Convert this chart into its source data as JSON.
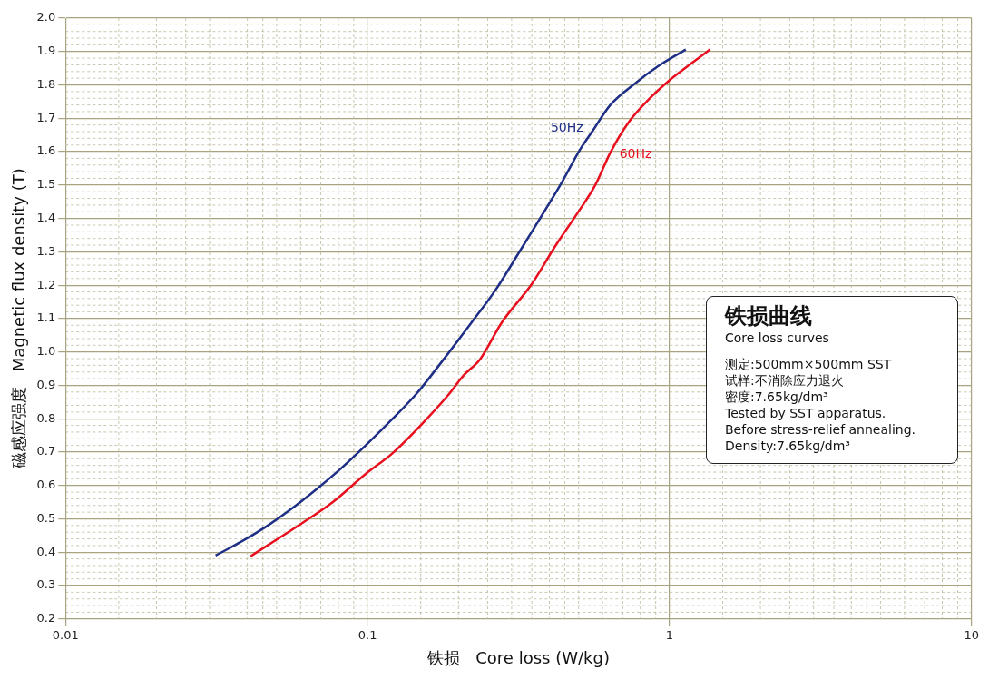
{
  "chart_data": {
    "type": "line",
    "title": "铁损曲线",
    "subtitle": "Core loss curves",
    "xlabel": "铁损   Core loss (W/kg)",
    "ylabel": "磁感应强度   Magnetic flux density (T)",
    "log": "x",
    "xlim": [
      0.01,
      10
    ],
    "xticks": [
      0.01,
      0.1,
      1,
      10
    ],
    "ylim": [
      0.2,
      2.0
    ],
    "yticks": [
      0.2,
      0.3,
      0.4,
      0.5,
      0.6,
      0.7,
      0.8,
      0.9,
      {
        "value": 1,
        "label": "1.0"
      },
      1.1,
      1.2,
      1.3,
      1.4,
      1.5,
      1.6,
      1.7,
      1.8,
      1.9,
      {
        "value": 2,
        "label": "2.0"
      }
    ],
    "grid": true,
    "legend": false,
    "marker": "none",
    "line_style": "solid",
    "series": [
      {
        "name": "50Hz",
        "color": "#1f2f86",
        "x": [
          0.0314,
          0.0391,
          0.0471,
          0.0579,
          0.0697,
          0.0819,
          0.1007,
          0.1211,
          0.1456,
          0.179,
          0.2204,
          0.2651,
          0.3189,
          0.3832,
          0.44,
          0.5052,
          0.5542,
          0.6368,
          0.7652,
          0.9204,
          1.132
        ],
        "values": [
          0.39,
          0.437,
          0.482,
          0.54,
          0.598,
          0.652,
          0.728,
          0.8,
          0.876,
          0.979,
          1.087,
          1.185,
          1.301,
          1.418,
          1.508,
          1.606,
          1.66,
          1.74,
          1.803,
          1.857,
          1.906
        ]
      },
      {
        "name": "60Hz",
        "color": "#e8101e",
        "x": [
          0.041,
          0.0607,
          0.0764,
          0.0984,
          0.1211,
          0.1525,
          0.1834,
          0.2082,
          0.2362,
          0.2777,
          0.3495,
          0.4204,
          0.5052,
          0.5672,
          0.6368,
          0.731,
          0.8395,
          1.009,
          1.187,
          1.362
        ],
        "values": [
          0.388,
          0.487,
          0.549,
          0.634,
          0.697,
          0.787,
          0.867,
          0.93,
          0.979,
          1.087,
          1.203,
          1.32,
          1.427,
          1.499,
          1.597,
          1.687,
          1.75,
          1.817,
          1.866,
          1.906
        ]
      }
    ],
    "annotations": [
      "测定:500mm×500mm SST",
      "试样:不消除应力退火",
      "密度:7.65kg/dm³",
      "Tested by SST apparatus.",
      "Before stress-relief annealing.",
      "Density:7.65kg/dm³"
    ]
  }
}
